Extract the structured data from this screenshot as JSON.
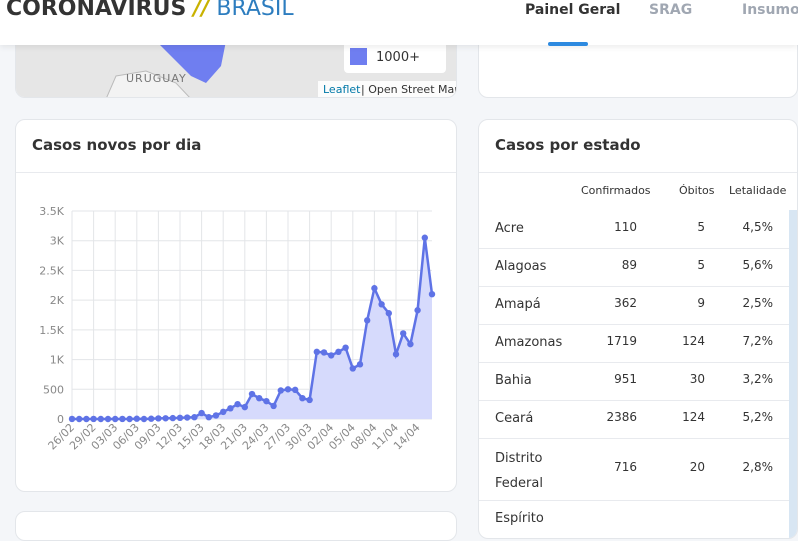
{
  "header": {
    "logo_main": "CORONAVÍRUS",
    "logo_sep": "//",
    "logo_sub": "BRASIL",
    "nav": [
      "Painel Geral",
      "SRAG",
      "Insumos"
    ]
  },
  "map": {
    "country_label": "URUGUAY",
    "legend_label": "1000+",
    "attribution_link": "Leaflet",
    "attribution_text": "| Open Street Map"
  },
  "chart_data": {
    "type": "line",
    "title": "Casos novos por dia",
    "color": "#5f73e6",
    "fill": "#d6dafc",
    "grid": true,
    "categories": [
      "26/02",
      null,
      null,
      "29/02",
      null,
      null,
      "03/03",
      null,
      null,
      "06/03",
      null,
      null,
      "09/03",
      null,
      null,
      "12/03",
      null,
      null,
      "15/03",
      null,
      null,
      "18/03",
      null,
      null,
      "21/03",
      null,
      null,
      "24/03",
      null,
      null,
      "27/03",
      null,
      null,
      "30/03",
      null,
      null,
      "02/04",
      null,
      null,
      "05/04",
      null,
      null,
      "08/04",
      null,
      null,
      "11/04",
      null,
      null,
      "14/04",
      null,
      null
    ],
    "values": [
      1,
      0,
      0,
      1,
      0,
      0,
      0,
      1,
      0,
      5,
      0,
      5,
      10,
      12,
      15,
      20,
      25,
      30,
      100,
      30,
      60,
      120,
      180,
      250,
      200,
      420,
      350,
      300,
      220,
      480,
      500,
      490,
      350,
      320,
      1130,
      1120,
      1070,
      1130,
      1200,
      850,
      920,
      1660,
      2200,
      1930,
      1780,
      1090,
      1440,
      1260,
      1830,
      3050,
      2100
    ],
    "ylim": [
      0,
      3500
    ],
    "yticks": [
      0,
      500,
      {
        "value": 1000,
        "label": "1K"
      },
      {
        "value": 1500,
        "label": "1.5K"
      },
      {
        "value": 2000,
        "label": "2K"
      },
      {
        "value": 2500,
        "label": "2.5K"
      },
      {
        "value": 3000,
        "label": "3K"
      },
      {
        "value": 3500,
        "label": "3.5K"
      }
    ]
  },
  "table": {
    "title": "Casos por estado",
    "columns": [
      "Confirmados",
      "Óbitos",
      "Letalidade"
    ],
    "rows": [
      [
        "Acre",
        "110",
        "5",
        "4,5%"
      ],
      [
        "Alagoas",
        "89",
        "5",
        "5,6%"
      ],
      [
        "Amapá",
        "362",
        "9",
        "2,5%"
      ],
      [
        "Amazonas",
        "1719",
        "124",
        "7,2%"
      ],
      [
        "Bahia",
        "951",
        "30",
        "3,2%"
      ],
      [
        "Ceará",
        "2386",
        "124",
        "5,2%"
      ],
      [
        "Distrito Federal",
        "716",
        "20",
        "2,8%"
      ],
      [
        "Espírito",
        "",
        "",
        ""
      ]
    ]
  }
}
